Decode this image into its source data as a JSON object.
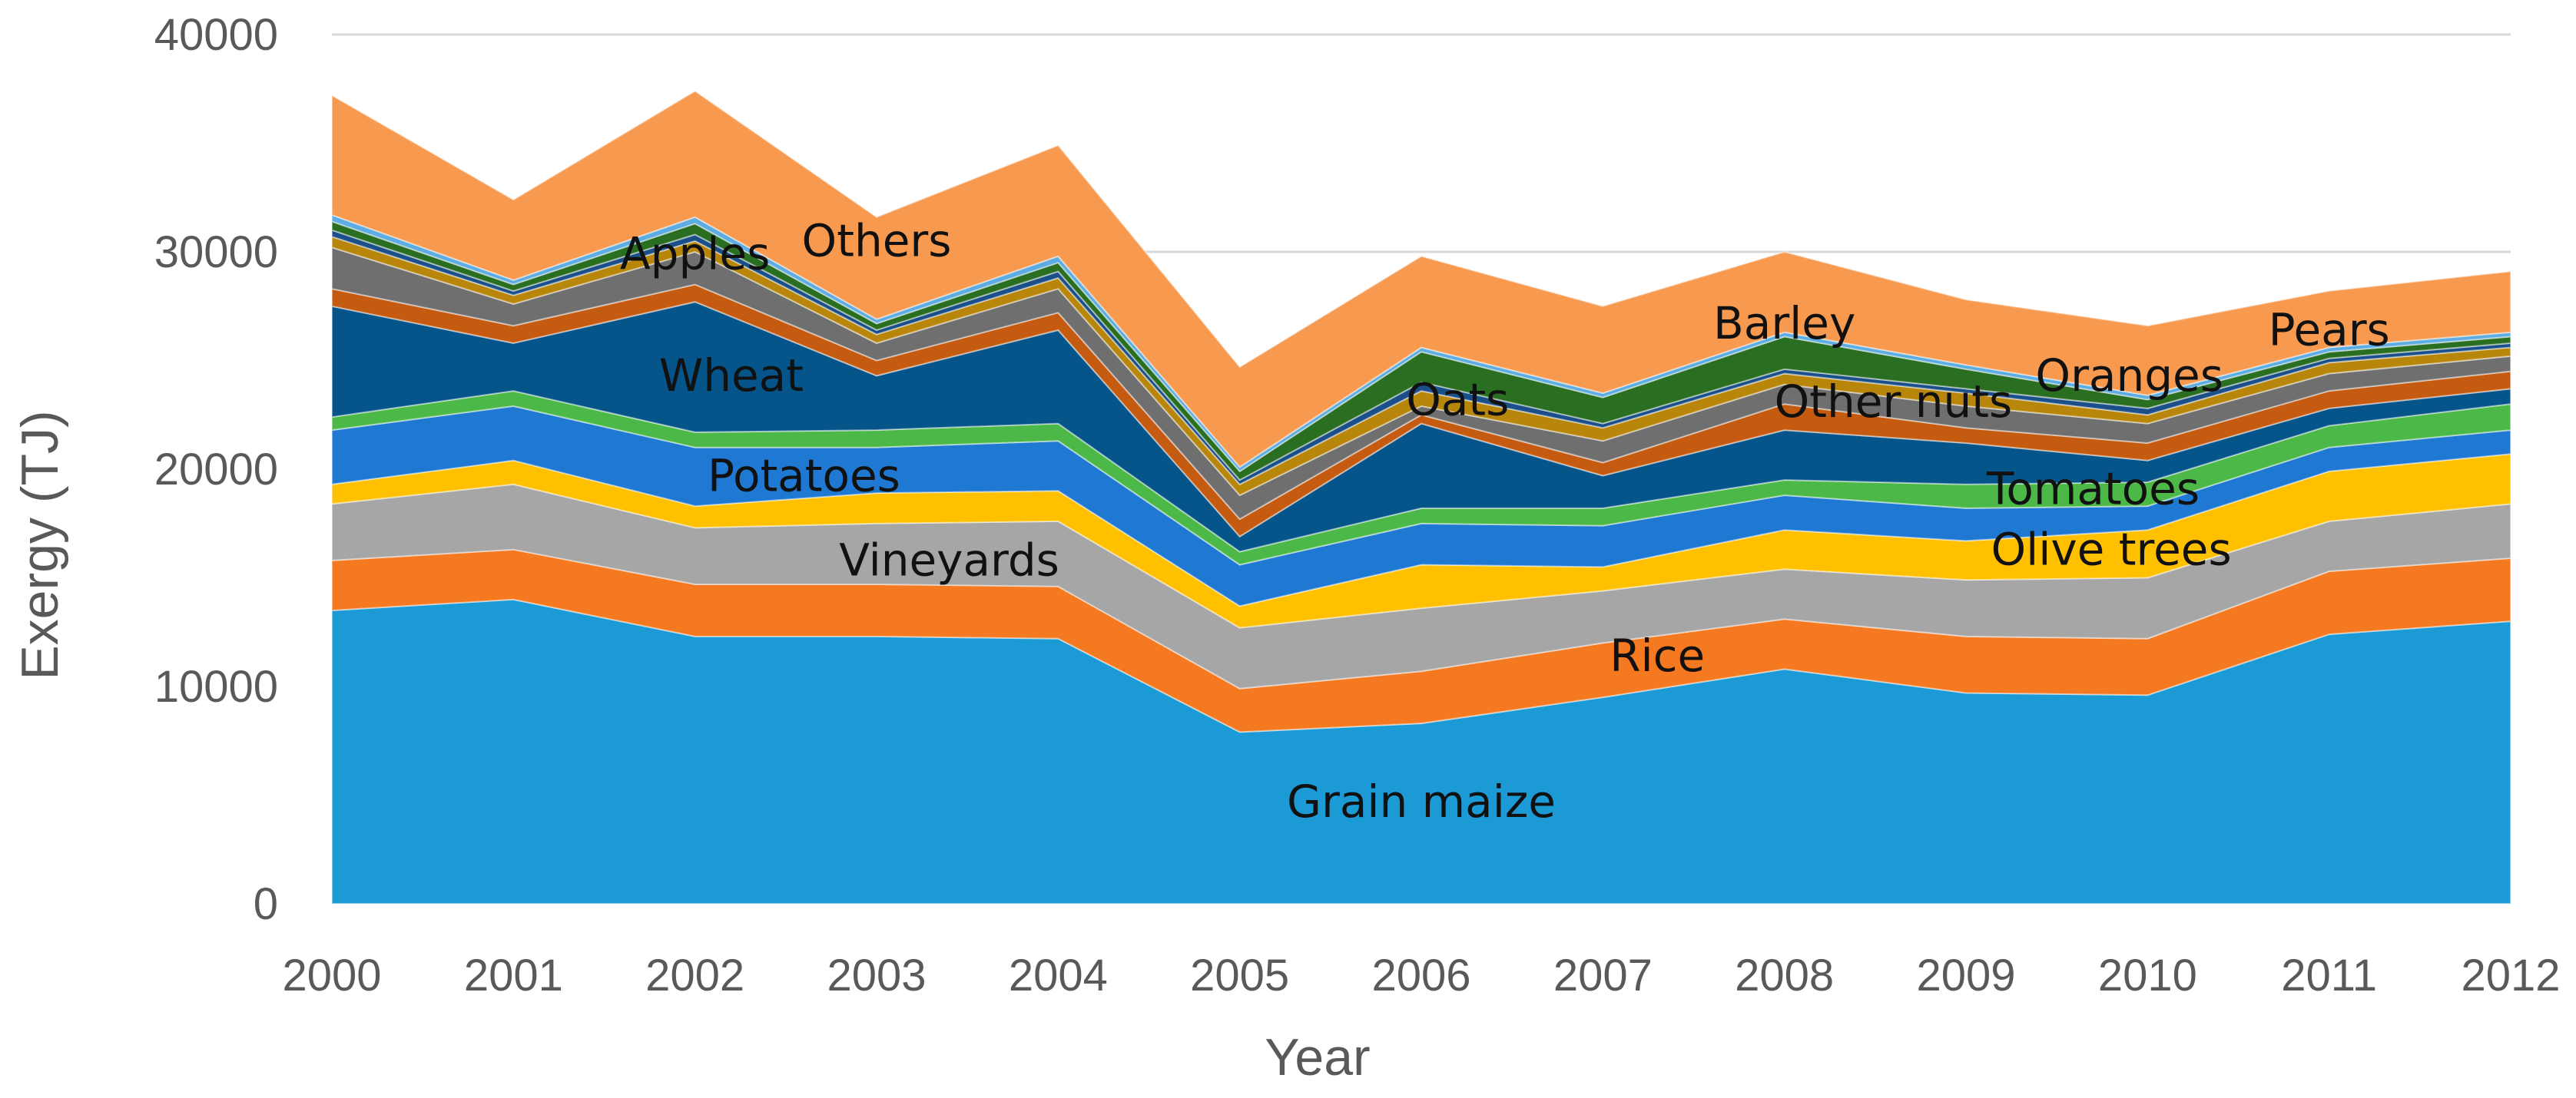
{
  "chart_data": {
    "type": "area",
    "stacked": true,
    "title": "",
    "xlabel": "Year",
    "ylabel": "Exergy (TJ)",
    "ylim": [
      0,
      40000
    ],
    "yticks": [
      "0",
      "10000",
      "20000",
      "30000",
      "40000"
    ],
    "categories": [
      "2000",
      "2001",
      "2002",
      "2003",
      "2004",
      "2005",
      "2006",
      "2007",
      "2008",
      "2009",
      "2010",
      "2011",
      "2012"
    ],
    "series": [
      {
        "name": "Grain maize",
        "color": "#1b9ad6",
        "values": [
          13500,
          14000,
          12300,
          12300,
          12200,
          7900,
          8300,
          9500,
          10800,
          9700,
          9600,
          12400,
          13000
        ]
      },
      {
        "name": "Rice",
        "color": "#f47920",
        "values": [
          2300,
          2300,
          2400,
          2400,
          2400,
          2000,
          2400,
          2500,
          2300,
          2600,
          2600,
          2900,
          2900
        ]
      },
      {
        "name": "Vineyards",
        "color": "#a6a6a6",
        "values": [
          2600,
          3000,
          2600,
          2800,
          3000,
          2800,
          2900,
          2400,
          2300,
          2600,
          2800,
          2300,
          2500
        ]
      },
      {
        "name": "Olive trees",
        "color": "#ffc000",
        "values": [
          900,
          1100,
          1000,
          1400,
          1400,
          1000,
          2000,
          1100,
          1800,
          1800,
          2200,
          2300,
          2300
        ]
      },
      {
        "name": "Potatoes",
        "color": "#1f78d1",
        "values": [
          2500,
          2500,
          2700,
          2100,
          2300,
          1900,
          1900,
          1900,
          1600,
          1500,
          1100,
          1100,
          1100
        ]
      },
      {
        "name": "Tomatoes",
        "color": "#4cb848",
        "values": [
          600,
          700,
          700,
          800,
          800,
          600,
          700,
          800,
          700,
          1100,
          1100,
          1000,
          1200
        ]
      },
      {
        "name": "Wheat",
        "color": "#06558a",
        "values": [
          5100,
          2200,
          6000,
          2500,
          4300,
          700,
          3900,
          1500,
          2300,
          1900,
          1000,
          800,
          700
        ]
      },
      {
        "name": "Other nuts",
        "color": "#c55a11",
        "values": [
          800,
          800,
          800,
          700,
          800,
          800,
          400,
          600,
          1200,
          700,
          800,
          800,
          800
        ]
      },
      {
        "name": "Apples",
        "color": "#6f6f6f",
        "values": [
          1900,
          1000,
          1500,
          800,
          1100,
          1100,
          400,
          1000,
          900,
          1000,
          900,
          800,
          700
        ]
      },
      {
        "name": "Oranges",
        "color": "#b8860b",
        "values": [
          500,
          400,
          500,
          400,
          500,
          500,
          700,
          600,
          500,
          600,
          400,
          500,
          400
        ]
      },
      {
        "name": "Oats",
        "color": "#1a4f8a",
        "values": [
          300,
          200,
          300,
          200,
          300,
          200,
          400,
          200,
          200,
          200,
          300,
          200,
          200
        ]
      },
      {
        "name": "Barley",
        "color": "#2a6e22",
        "values": [
          400,
          300,
          500,
          300,
          400,
          400,
          1400,
          1200,
          1500,
          900,
          400,
          300,
          300
        ]
      },
      {
        "name": "Pears",
        "color": "#5dade2",
        "values": [
          300,
          200,
          300,
          200,
          300,
          200,
          200,
          200,
          200,
          200,
          200,
          200,
          200
        ]
      },
      {
        "name": "Others",
        "color": "#f79a50",
        "values": [
          5500,
          3700,
          5800,
          4700,
          5100,
          4600,
          4200,
          4000,
          3700,
          3000,
          3200,
          2600,
          2800
        ]
      }
    ],
    "annotations": [
      {
        "text": "Grain maize",
        "series": "Grain maize",
        "x": 6.0,
        "y": 4000
      },
      {
        "text": "Rice",
        "series": "Rice",
        "x": 7.3,
        "y": 10700
      },
      {
        "text": "Vineyards",
        "series": "Vineyards",
        "x": 3.4,
        "y": 15100
      },
      {
        "text": "Olive trees",
        "series": "Olive trees",
        "x": 9.8,
        "y": 15600
      },
      {
        "text": "Potatoes",
        "series": "Potatoes",
        "x": 2.6,
        "y": 19000
      },
      {
        "text": "Tomatoes",
        "series": "Tomatoes",
        "x": 9.7,
        "y": 18400
      },
      {
        "text": "Wheat",
        "series": "Wheat",
        "x": 2.2,
        "y": 23600
      },
      {
        "text": "Other nuts",
        "series": "Other nuts",
        "x": 8.6,
        "y": 22400
      },
      {
        "text": "Apples",
        "series": "Apples",
        "x": 2.0,
        "y": 29200
      },
      {
        "text": "Oats",
        "series": "Oats",
        "x": 6.2,
        "y": 22500
      },
      {
        "text": "Oranges",
        "series": "Oranges",
        "x": 9.9,
        "y": 23600
      },
      {
        "text": "Barley",
        "series": "Barley",
        "x": 8.0,
        "y": 26000
      },
      {
        "text": "Pears",
        "series": "Pears",
        "x": 11.0,
        "y": 25700
      },
      {
        "text": "Others",
        "series": "Others",
        "x": 3.0,
        "y": 29800
      }
    ]
  }
}
